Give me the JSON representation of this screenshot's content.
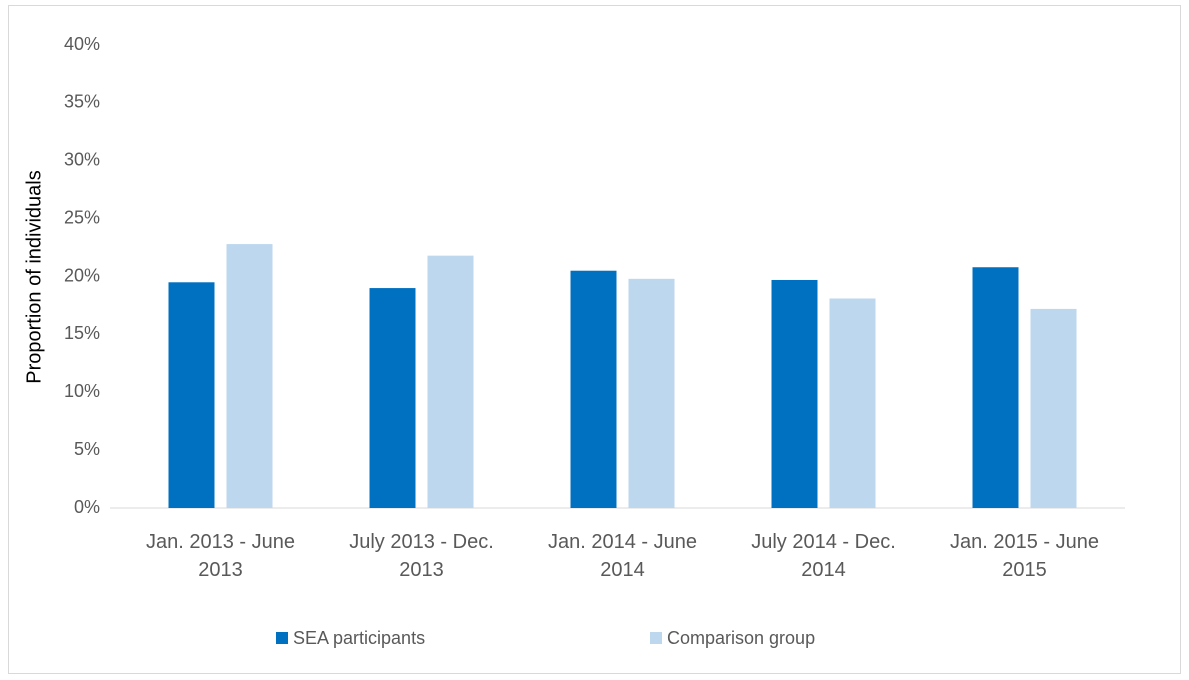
{
  "chart_data": {
    "type": "bar",
    "y_label": "Proportion of individuals",
    "categories": [
      "Jan. 2013 - June 2013",
      "July 2013 - Dec. 2013",
      "Jan. 2014 - June 2014",
      "July 2014 - Dec. 2014",
      "Jan. 2015 - June 2015"
    ],
    "series": [
      {
        "name": "SEA participants",
        "color": "#0070c0",
        "values": [
          19.5,
          19.0,
          20.5,
          19.7,
          20.8
        ]
      },
      {
        "name": "Comparison group",
        "color": "#bdd7ee",
        "values": [
          22.8,
          21.8,
          19.8,
          18.1,
          17.2
        ]
      }
    ],
    "ylim": [
      0,
      40
    ],
    "yticks": [
      {
        "value": 0,
        "label": "0%"
      },
      {
        "value": 5,
        "label": "5%"
      },
      {
        "value": 10,
        "label": "10%"
      },
      {
        "value": 15,
        "label": "15%"
      },
      {
        "value": 20,
        "label": "20%"
      },
      {
        "value": 25,
        "label": "25%"
      },
      {
        "value": 30,
        "label": "30%"
      },
      {
        "value": 35,
        "label": "35%"
      },
      {
        "value": 40,
        "label": "40%"
      }
    ],
    "grid": false,
    "legend": "bottom"
  }
}
